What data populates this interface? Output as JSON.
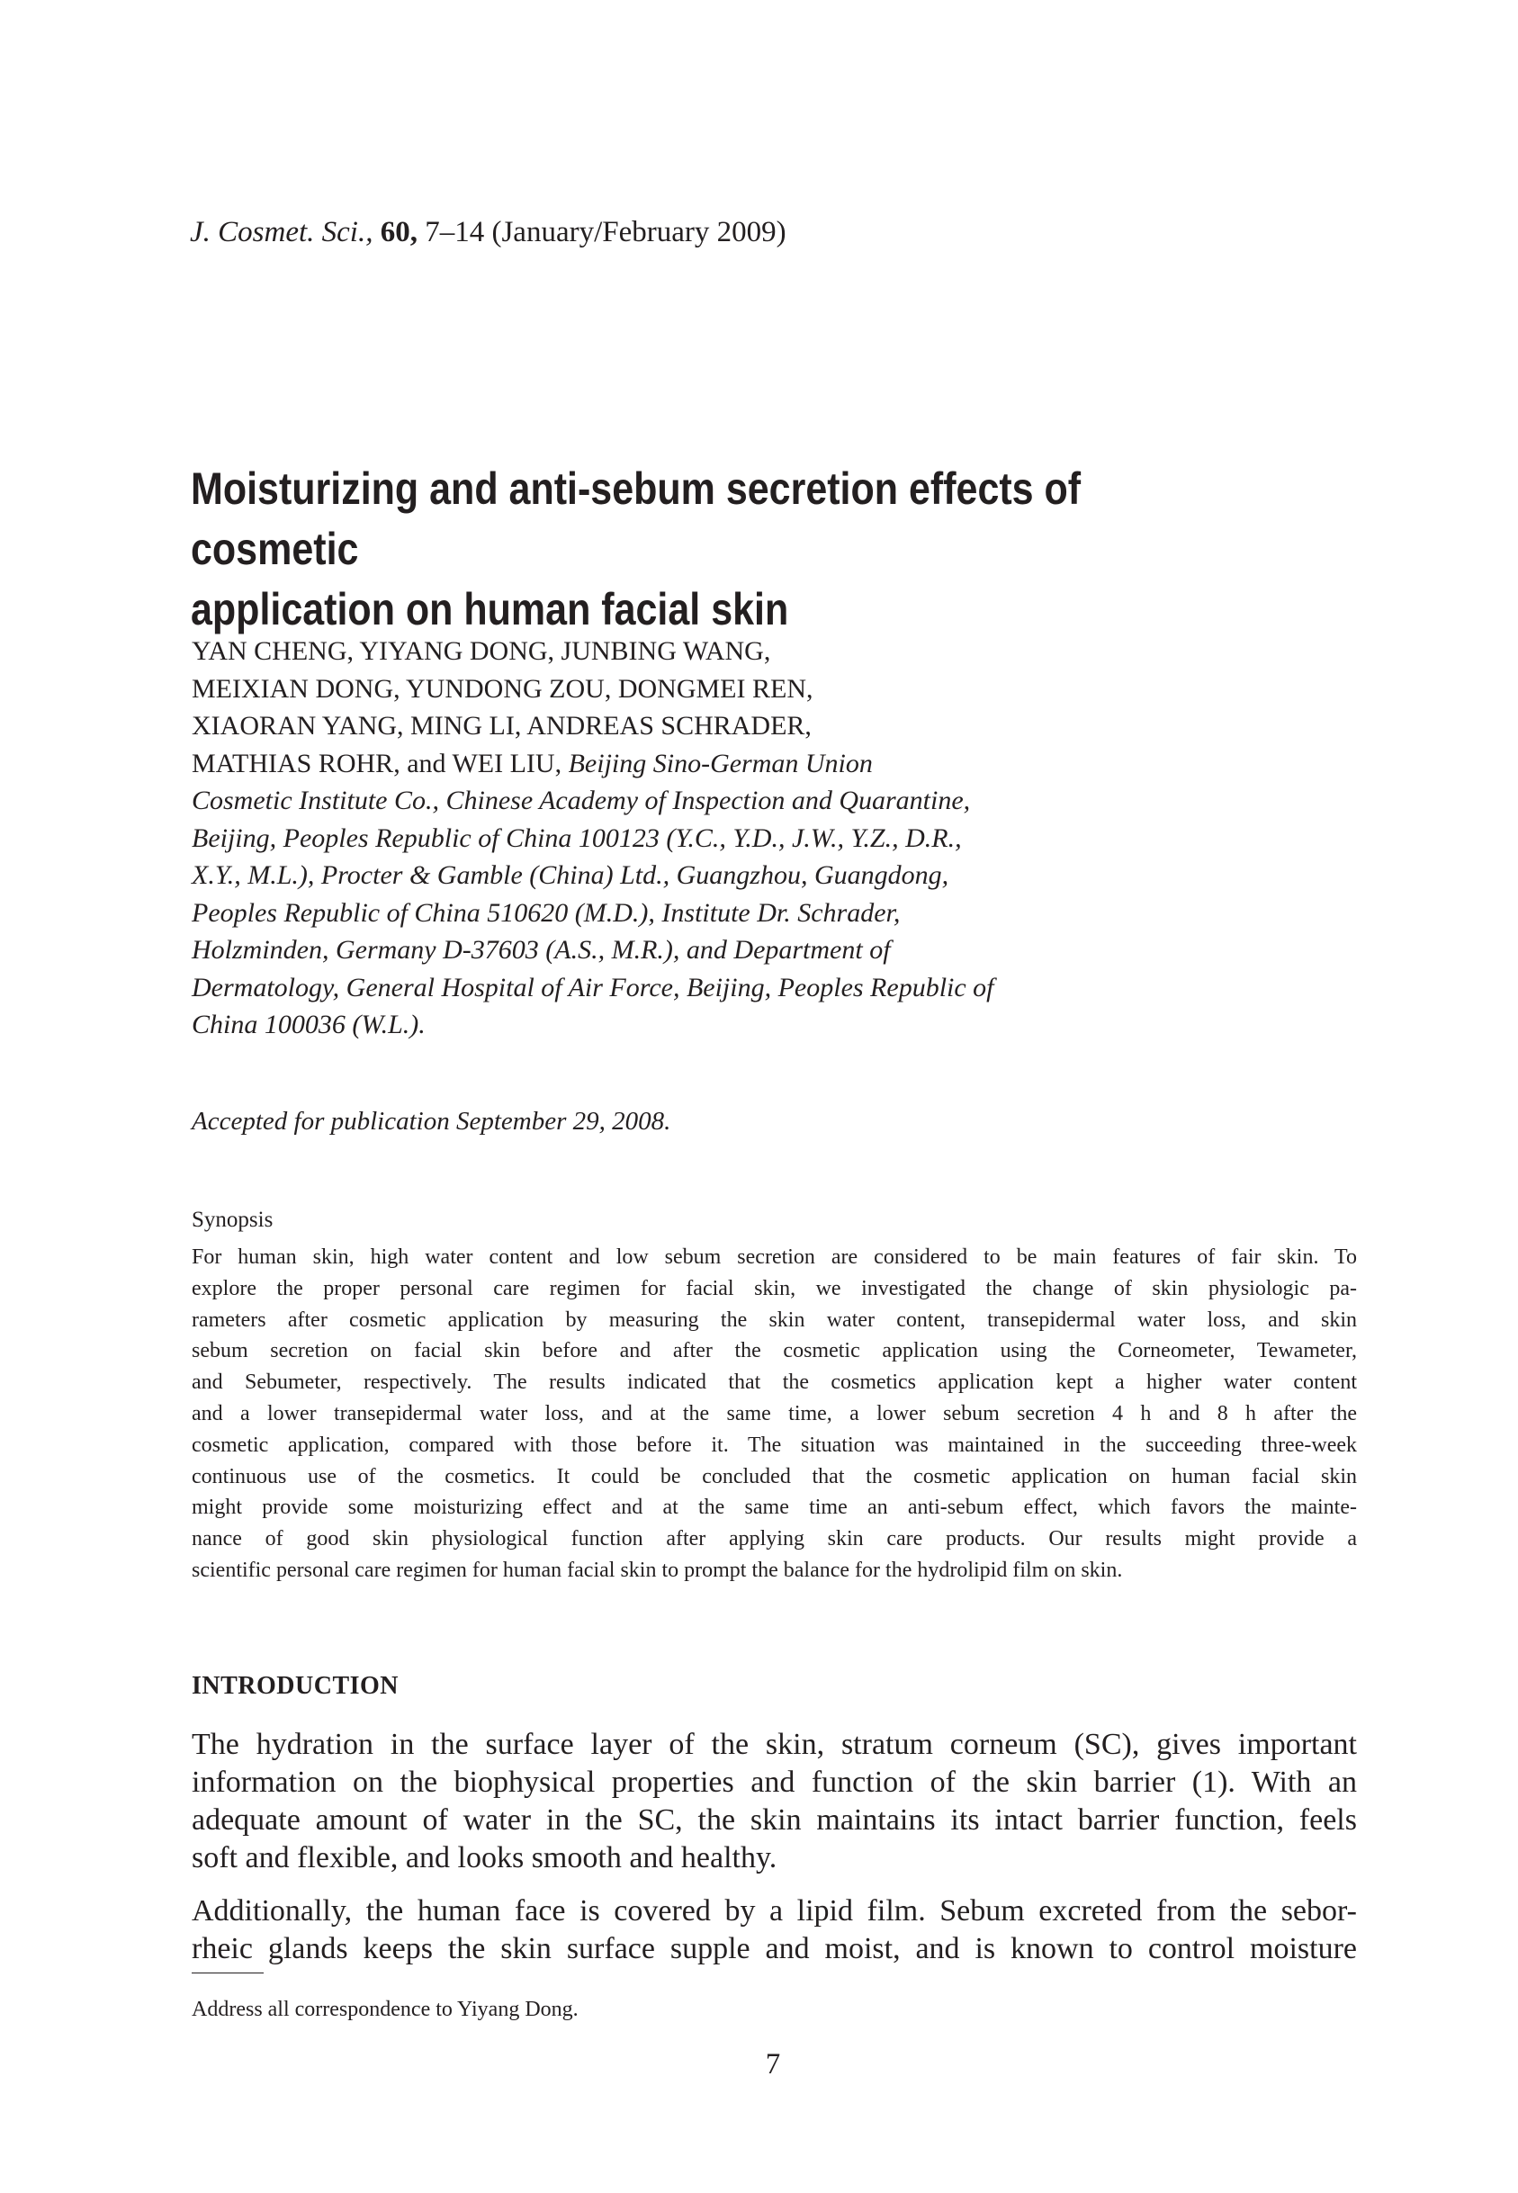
{
  "header": {
    "journal": "J. Cosmet. Sci.,",
    "volume": "60,",
    "citation": "7–14 (January/February 2009)"
  },
  "title_lines": [
    "Moisturizing and anti-sebum secretion effects of cosmetic",
    "application on human facial skin"
  ],
  "authors": {
    "lines": [
      "YAN CHENG, YIYANG DONG, JUNBING WANG,",
      "MEIXIAN DONG, YUNDONG ZOU, DONGMEI REN,",
      "XIAORAN YANG, MING LI, ANDREAS SCHRADER,",
      "MATHIAS ROHR, and WEI LIU,"
    ],
    "affiliation_start": "Beijing Sino-German Union",
    "affiliation_lines": [
      "Cosmetic Institute Co., Chinese Academy of Inspection and Quarantine,",
      "Beijing, Peoples Republic of China 100123 (Y.C., Y.D., J.W., Y.Z., D.R.,",
      "X.Y., M.L.), Procter & Gamble (China) Ltd., Guangzhou, Guangdong,",
      "Peoples Republic of China 510620 (M.D.), Institute Dr. Schrader,",
      "Holzminden, Germany D-37603 (A.S., M.R.), and Department of",
      "Dermatology, General Hospital of Air Force, Beijing, Peoples Republic of",
      "China 100036 (W.L.)."
    ]
  },
  "accepted": "Accepted for publication September 29, 2008.",
  "synopsis": {
    "heading": "Synopsis",
    "lines": [
      "For human skin, high water content and low sebum secretion are considered to be main features of fair skin. To",
      "explore the proper personal care regimen for facial skin, we investigated the change of skin physiologic pa-",
      "rameters after cosmetic application by measuring the skin water content, transepidermal water loss, and skin",
      "sebum secretion on facial skin before and after the cosmetic application using the Corneometer, Tewameter,",
      "and Sebumeter, respectively. The results indicated that the cosmetics application kept a higher water content",
      "and a lower transepidermal water loss, and at the same time, a lower sebum secretion 4 h and 8 h after the",
      "cosmetic application, compared with those before it. The situation was maintained in the succeeding three-week",
      "continuous use of the cosmetics. It could be concluded that the cosmetic application on human facial skin",
      "might provide some moisturizing effect and at the same time an anti-sebum effect, which favors the mainte-",
      "nance of good skin physiological function after applying skin care products. Our results might provide a",
      "scientific personal care regimen for human facial skin to prompt the balance for the hydrolipid film on skin."
    ]
  },
  "introduction": {
    "heading": "INTRODUCTION",
    "paragraph1": [
      "The hydration in the surface layer of the skin, stratum corneum (SC), gives important",
      "information on the biophysical properties and function of the skin barrier (1). With an",
      "adequate amount of water in the SC, the skin maintains its intact barrier function, feels",
      "soft and flexible, and looks smooth and healthy."
    ],
    "paragraph2": [
      "Additionally, the human face is covered by a lipid film. Sebum excreted from the sebor-",
      "rheic glands keeps the skin surface supple and moist, and is known to control moisture"
    ]
  },
  "footnote": "Address all correspondence to Yiyang Dong.",
  "page_number": "7"
}
